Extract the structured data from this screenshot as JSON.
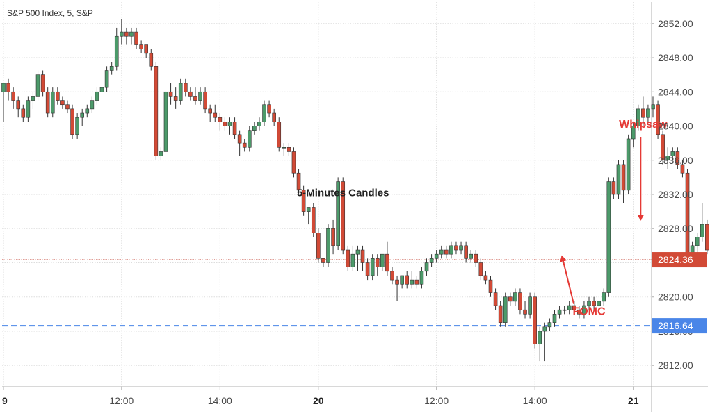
{
  "chart_data": {
    "type": "candlestick",
    "title": "S&P 500 Index, 5, S&P",
    "interval_minutes": 5,
    "ylim": [
      2809.5,
      2854.5
    ],
    "xlim": [
      0,
      132
    ],
    "y_ticks": [
      2812,
      2816,
      2820,
      2824,
      2828,
      2832,
      2836,
      2840,
      2844,
      2848,
      2852
    ],
    "y_tick_labels": [
      "2812.00",
      "2816.00",
      "2820.00",
      "2824.00",
      "2828.00",
      "2832.00",
      "2836.00",
      "2840.00",
      "2844.00",
      "2848.00",
      "2852.00"
    ],
    "x_ticks": [
      {
        "label": "9",
        "at": 0,
        "bold": true
      },
      {
        "label": "12:00",
        "at": 24,
        "bold": false
      },
      {
        "label": "14:00",
        "at": 44,
        "bold": false
      },
      {
        "label": "20",
        "at": 64,
        "bold": true
      },
      {
        "label": "12:00",
        "at": 88,
        "bold": false
      },
      {
        "label": "14:00",
        "at": 108,
        "bold": false
      },
      {
        "label": "21",
        "at": 128,
        "bold": true
      }
    ],
    "grid": true,
    "ohlc": [
      [
        2844.0,
        2845.0,
        2840.5,
        2845.0
      ],
      [
        2845.0,
        2845.5,
        2843.0,
        2844.0
      ],
      [
        2844.0,
        2844.5,
        2842.0,
        2843.0
      ],
      [
        2843.0,
        2843.5,
        2841.0,
        2842.0
      ],
      [
        2842.0,
        2842.5,
        2840.5,
        2841.0
      ],
      [
        2841.0,
        2843.5,
        2840.5,
        2843.0
      ],
      [
        2843.0,
        2844.0,
        2842.0,
        2843.5
      ],
      [
        2843.5,
        2846.5,
        2843.0,
        2846.0
      ],
      [
        2846.0,
        2846.5,
        2843.5,
        2844.0
      ],
      [
        2844.0,
        2844.5,
        2841.0,
        2841.5
      ],
      [
        2841.5,
        2844.5,
        2841.0,
        2844.0
      ],
      [
        2844.0,
        2844.5,
        2842.5,
        2843.0
      ],
      [
        2843.0,
        2843.5,
        2842.0,
        2842.5
      ],
      [
        2842.5,
        2843.0,
        2841.5,
        2842.0
      ],
      [
        2842.0,
        2842.5,
        2838.5,
        2839.0
      ],
      [
        2839.0,
        2841.5,
        2838.5,
        2841.0
      ],
      [
        2841.0,
        2842.0,
        2840.0,
        2841.5
      ],
      [
        2841.5,
        2842.5,
        2841.0,
        2842.0
      ],
      [
        2842.0,
        2843.5,
        2841.5,
        2843.0
      ],
      [
        2843.0,
        2844.5,
        2842.5,
        2844.0
      ],
      [
        2844.0,
        2845.0,
        2843.0,
        2844.5
      ],
      [
        2844.5,
        2847.0,
        2844.0,
        2846.5
      ],
      [
        2846.5,
        2847.5,
        2846.0,
        2847.0
      ],
      [
        2847.0,
        2851.5,
        2846.5,
        2850.5
      ],
      [
        2850.5,
        2852.5,
        2849.5,
        2851.0
      ],
      [
        2851.0,
        2851.5,
        2849.5,
        2850.5
      ],
      [
        2850.5,
        2851.5,
        2849.5,
        2851.0
      ],
      [
        2851.0,
        2851.5,
        2849.0,
        2849.5
      ],
      [
        2849.5,
        2850.0,
        2848.5,
        2849.0
      ],
      [
        2849.5,
        2849.5,
        2848.0,
        2848.5
      ],
      [
        2848.5,
        2849.0,
        2846.5,
        2847.0
      ],
      [
        2847.0,
        2847.5,
        2836.0,
        2836.5
      ],
      [
        2836.5,
        2837.5,
        2836.0,
        2837.0
      ],
      [
        2837.0,
        2844.5,
        2837.0,
        2844.0
      ],
      [
        2844.0,
        2845.0,
        2842.5,
        2843.5
      ],
      [
        2843.5,
        2844.5,
        2842.0,
        2843.0
      ],
      [
        2843.0,
        2845.5,
        2842.5,
        2845.0
      ],
      [
        2845.0,
        2845.5,
        2843.5,
        2844.0
      ],
      [
        2844.0,
        2844.5,
        2843.0,
        2843.5
      ],
      [
        2843.5,
        2844.5,
        2842.5,
        2843.0
      ],
      [
        2843.0,
        2844.5,
        2842.5,
        2844.0
      ],
      [
        2844.0,
        2844.5,
        2841.5,
        2842.0
      ],
      [
        2842.0,
        2842.5,
        2840.5,
        2841.5
      ],
      [
        2841.5,
        2842.5,
        2840.5,
        2841.0
      ],
      [
        2841.0,
        2841.5,
        2839.5,
        2840.5
      ],
      [
        2840.5,
        2841.0,
        2839.5,
        2840.0
      ],
      [
        2840.0,
        2841.0,
        2839.0,
        2840.5
      ],
      [
        2840.5,
        2841.0,
        2838.5,
        2839.0
      ],
      [
        2839.0,
        2839.5,
        2836.5,
        2838.0
      ],
      [
        2838.0,
        2838.5,
        2837.0,
        2837.5
      ],
      [
        2837.5,
        2840.0,
        2837.0,
        2839.5
      ],
      [
        2839.5,
        2840.5,
        2839.0,
        2840.0
      ],
      [
        2840.0,
        2841.0,
        2839.5,
        2840.5
      ],
      [
        2840.5,
        2843.0,
        2840.0,
        2842.5
      ],
      [
        2842.5,
        2843.0,
        2841.0,
        2841.5
      ],
      [
        2841.5,
        2842.0,
        2840.0,
        2840.5
      ],
      [
        2840.5,
        2841.0,
        2837.0,
        2837.5
      ],
      [
        2837.5,
        2838.0,
        2836.5,
        2837.5
      ],
      [
        2837.5,
        2838.0,
        2836.5,
        2837.0
      ],
      [
        2837.0,
        2837.5,
        2834.0,
        2834.5
      ],
      [
        2834.5,
        2835.0,
        2832.0,
        2832.5
      ],
      [
        2832.5,
        2833.0,
        2829.5,
        2830.0
      ],
      [
        2830.0,
        2830.5,
        2828.5,
        2830.5
      ],
      [
        2830.5,
        2831.0,
        2827.0,
        2827.5
      ],
      [
        2827.5,
        2828.0,
        2824.0,
        2824.5
      ],
      [
        2824.5,
        2824.5,
        2823.5,
        2824.0
      ],
      [
        2824.0,
        2828.5,
        2823.5,
        2828.0
      ],
      [
        2828.0,
        2829.0,
        2825.0,
        2826.0
      ],
      [
        2826.0,
        2834.0,
        2825.5,
        2833.5
      ],
      [
        2833.5,
        2834.0,
        2825.0,
        2825.5
      ],
      [
        2825.5,
        2826.0,
        2823.0,
        2823.5
      ],
      [
        2823.5,
        2826.0,
        2823.0,
        2825.0
      ],
      [
        2825.0,
        2826.0,
        2823.0,
        2825.5
      ],
      [
        2825.5,
        2826.0,
        2823.0,
        2824.0
      ],
      [
        2824.0,
        2824.5,
        2822.0,
        2822.5
      ],
      [
        2822.5,
        2825.0,
        2822.0,
        2824.5
      ],
      [
        2824.5,
        2825.0,
        2822.5,
        2823.5
      ],
      [
        2823.5,
        2825.0,
        2823.0,
        2825.0
      ],
      [
        2825.0,
        2826.5,
        2822.5,
        2823.0
      ],
      [
        2823.0,
        2823.5,
        2821.5,
        2822.0
      ],
      [
        2822.0,
        2822.5,
        2819.5,
        2821.5
      ],
      [
        2821.5,
        2822.5,
        2821.0,
        2822.5
      ],
      [
        2822.5,
        2823.0,
        2821.0,
        2821.5
      ],
      [
        2821.5,
        2823.0,
        2821.0,
        2822.0
      ],
      [
        2822.0,
        2822.5,
        2821.0,
        2821.5
      ],
      [
        2821.5,
        2823.5,
        2821.0,
        2823.0
      ],
      [
        2823.0,
        2824.5,
        2822.5,
        2824.0
      ],
      [
        2824.0,
        2825.0,
        2823.5,
        2824.5
      ],
      [
        2824.5,
        2825.5,
        2824.0,
        2825.0
      ],
      [
        2825.0,
        2826.0,
        2824.5,
        2825.5
      ],
      [
        2825.5,
        2826.0,
        2824.5,
        2825.0
      ],
      [
        2825.0,
        2826.5,
        2824.5,
        2826.0
      ],
      [
        2826.0,
        2826.5,
        2825.0,
        2825.5
      ],
      [
        2825.5,
        2826.5,
        2825.0,
        2826.0
      ],
      [
        2826.0,
        2826.5,
        2824.0,
        2824.5
      ],
      [
        2824.5,
        2825.5,
        2824.0,
        2825.0
      ],
      [
        2825.0,
        2825.5,
        2823.5,
        2824.0
      ],
      [
        2824.0,
        2824.5,
        2822.0,
        2822.5
      ],
      [
        2822.5,
        2823.0,
        2821.5,
        2822.0
      ],
      [
        2822.0,
        2822.5,
        2820.0,
        2820.5
      ],
      [
        2820.5,
        2821.0,
        2818.5,
        2819.0
      ],
      [
        2819.0,
        2819.5,
        2816.5,
        2817.0
      ],
      [
        2817.0,
        2820.5,
        2816.5,
        2820.0
      ],
      [
        2820.0,
        2820.5,
        2819.0,
        2819.5
      ],
      [
        2819.5,
        2821.0,
        2819.0,
        2820.5
      ],
      [
        2820.5,
        2821.0,
        2818.0,
        2818.5
      ],
      [
        2818.5,
        2819.5,
        2817.5,
        2818.0
      ],
      [
        2818.0,
        2820.5,
        2817.5,
        2820.0
      ],
      [
        2820.0,
        2820.5,
        2814.0,
        2814.5
      ],
      [
        2814.5,
        2816.5,
        2812.5,
        2816.0
      ],
      [
        2816.0,
        2817.0,
        2812.5,
        2816.5
      ],
      [
        2816.5,
        2817.5,
        2816.0,
        2817.0
      ],
      [
        2817.0,
        2818.5,
        2816.5,
        2818.0
      ],
      [
        2818.0,
        2819.0,
        2817.5,
        2818.5
      ],
      [
        2818.5,
        2819.0,
        2818.0,
        2818.5
      ],
      [
        2818.5,
        2819.5,
        2818.0,
        2819.0
      ],
      [
        2819.0,
        2819.5,
        2818.0,
        2818.5
      ],
      [
        2818.5,
        2819.0,
        2817.5,
        2818.0
      ],
      [
        2818.0,
        2819.5,
        2817.5,
        2819.0
      ],
      [
        2819.0,
        2820.0,
        2818.5,
        2819.5
      ],
      [
        2819.5,
        2820.0,
        2818.5,
        2819.0
      ],
      [
        2819.0,
        2819.5,
        2819.0,
        2819.5
      ],
      [
        2819.5,
        2821.0,
        2819.0,
        2820.5
      ],
      [
        2820.5,
        2834.0,
        2820.0,
        2833.5
      ],
      [
        2833.5,
        2834.0,
        2831.5,
        2832.0
      ],
      [
        2832.0,
        2836.0,
        2831.5,
        2835.5
      ],
      [
        2835.5,
        2836.0,
        2831.0,
        2832.5
      ],
      [
        2832.5,
        2839.0,
        2832.0,
        2838.5
      ],
      [
        2838.5,
        2840.5,
        2837.5,
        2840.0
      ],
      [
        2840.0,
        2842.5,
        2839.5,
        2842.0
      ],
      [
        2842.0,
        2843.5,
        2840.0,
        2841.0
      ],
      [
        2841.0,
        2842.5,
        2840.5,
        2842.0
      ],
      [
        2842.0,
        2843.5,
        2841.0,
        2842.5
      ],
      [
        2842.5,
        2843.0,
        2838.5,
        2839.0
      ],
      [
        2839.0,
        2839.5,
        2835.5,
        2836.0
      ],
      [
        2836.0,
        2837.5,
        2835.0,
        2836.5
      ],
      [
        2836.5,
        2837.5,
        2836.0,
        2837.0
      ],
      [
        2837.0,
        2837.5,
        2835.0,
        2835.5
      ],
      [
        2835.5,
        2836.0,
        2834.0,
        2834.5
      ],
      [
        2834.5,
        2835.0,
        2824.5,
        2825.0
      ],
      [
        2825.0,
        2826.5,
        2824.5,
        2826.0
      ],
      [
        2826.0,
        2827.5,
        2825.0,
        2827.0
      ],
      [
        2827.0,
        2831.0,
        2826.5,
        2828.5
      ],
      [
        2828.5,
        2829.0,
        2825.0,
        2825.5
      ],
      [
        2825.5,
        2825.5,
        2823.5,
        2824.36
      ]
    ],
    "last_price": 2824.36,
    "last_price_label": "2824.36",
    "support_level": 2816.64,
    "support_label": "2816.64",
    "annotations": [
      {
        "text": "5-Minutes Candles",
        "x": 69,
        "y": 2831.8,
        "color": "#222222"
      },
      {
        "text": "FOMC",
        "x": 119,
        "y": 2817.9,
        "color": "#e53935",
        "arrow_to": [
          113.5,
          2824.8
        ]
      },
      {
        "text": "Whipsaw",
        "x": 130,
        "y": 2839.8,
        "color": "#e53935",
        "arrow_from": [
          129.5,
          2838.7
        ],
        "arrow_to": [
          129.5,
          2829.0
        ]
      }
    ],
    "colors": {
      "up": "#4c9a6a",
      "down": "#d24a36",
      "wick": "#333333",
      "grid": "#dddddd",
      "last_price_line": "#c0392b",
      "support_line": "#4a86e8",
      "badge_last": "#d24a36",
      "badge_support": "#4a86e8",
      "annotation_red": "#e53935"
    }
  }
}
